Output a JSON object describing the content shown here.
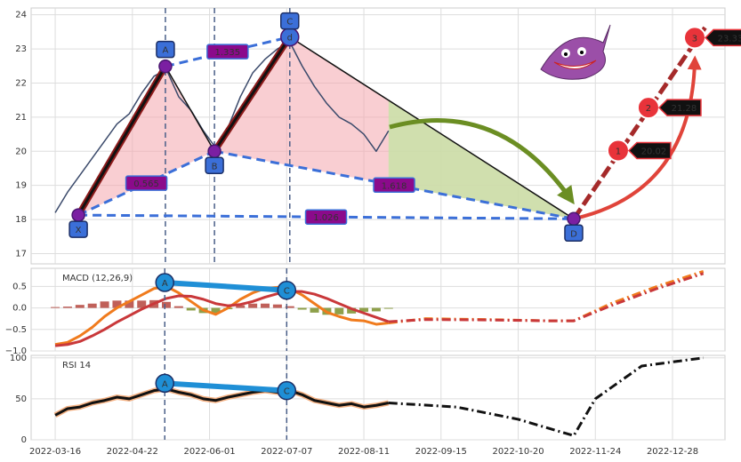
{
  "chart_data": [
    {
      "type": "line",
      "xlim": [
        -7.8,
        217
      ],
      "ylim": [
        16.7,
        24.2
      ],
      "yticks": [
        17,
        18,
        19,
        20,
        21,
        22,
        23,
        24
      ],
      "grid": true,
      "series": [
        {
          "color": "#3b4a6b",
          "x": [
            0,
            4,
            8,
            12,
            16,
            20,
            24,
            28,
            32,
            36,
            40,
            44,
            48,
            52,
            56,
            60,
            64,
            68,
            72,
            76,
            80,
            84,
            88,
            92,
            96,
            100,
            104,
            108
          ],
          "values": [
            18.2,
            18.8,
            19.3,
            19.8,
            20.3,
            20.8,
            21.1,
            21.7,
            22.2,
            22.4,
            21.6,
            21.2,
            20.6,
            20.1,
            20.7,
            21.6,
            22.3,
            22.7,
            23.0,
            23.2,
            22.5,
            21.9,
            21.4,
            21.0,
            20.8,
            20.5,
            20.0,
            20.6
          ]
        }
      ],
      "points": [
        {
          "label": "X",
          "x": 7.5,
          "y": 18.13
        },
        {
          "label": "A",
          "x": 35.7,
          "y": 22.49
        },
        {
          "label": "B",
          "x": 51.6,
          "y": 20.0
        },
        {
          "label": "C",
          "x": 76,
          "y": 23.35,
          "marker_text": "d"
        },
        {
          "label": "D",
          "x": 168,
          "y": 18.02
        }
      ],
      "ratios": [
        0.565,
        1.335,
        1.618,
        1.026
      ],
      "targets": [
        {
          "label": "1",
          "x": 182.4,
          "y": 20.02
        },
        {
          "label": "2",
          "x": 192.2,
          "y": 21.28
        },
        {
          "label": "3",
          "x": 207.2,
          "y": 23.33
        }
      ],
      "pattern_color": "#f4a6ad",
      "projection_color": "#c5e3a5"
    },
    {
      "type": "line",
      "title": "MACD (12,26,9)",
      "xlim": [
        -7.8,
        217
      ],
      "ylim": [
        -1.0,
        0.92
      ],
      "yticks": [
        {
          "value": -1,
          "label": "−1.0"
        },
        {
          "value": -0.5,
          "label": "−0.5"
        },
        {
          "value": 0,
          "label": "0.0"
        },
        0.5
      ],
      "grid": true,
      "series": [
        {
          "kind": "bar",
          "color": "#b5443c",
          "negative_color": "#7a8f2a",
          "x": [
            0,
            4,
            8,
            12,
            16,
            20,
            24,
            28,
            32,
            36,
            40,
            44,
            48,
            52,
            56,
            60,
            64,
            68,
            72,
            76,
            80,
            84,
            88,
            92,
            96,
            100,
            104,
            108
          ],
          "values": [
            0.02,
            0.03,
            0.07,
            0.1,
            0.15,
            0.17,
            0.17,
            0.17,
            0.18,
            0.14,
            0.04,
            -0.06,
            -0.12,
            -0.12,
            -0.03,
            0.06,
            0.1,
            0.1,
            0.08,
            0.04,
            -0.04,
            -0.11,
            -0.16,
            -0.15,
            -0.13,
            -0.09,
            -0.08,
            -0.02
          ]
        },
        {
          "color": "#f07b1d",
          "x": [
            0,
            4,
            8,
            12,
            16,
            20,
            24,
            28,
            32,
            36,
            40,
            44,
            48,
            52,
            56,
            60,
            64,
            68,
            72,
            76,
            80,
            84,
            88,
            92,
            96,
            100,
            104,
            108
          ],
          "values": [
            -0.85,
            -0.8,
            -0.65,
            -0.45,
            -0.2,
            0.0,
            0.15,
            0.3,
            0.45,
            0.5,
            0.35,
            0.15,
            -0.05,
            -0.15,
            0.0,
            0.2,
            0.35,
            0.45,
            0.48,
            0.45,
            0.3,
            0.1,
            -0.1,
            -0.2,
            -0.28,
            -0.3,
            -0.38,
            -0.35
          ]
        },
        {
          "color": "#c9383a",
          "x": [
            0,
            4,
            8,
            12,
            16,
            20,
            24,
            28,
            32,
            36,
            40,
            44,
            48,
            52,
            56,
            60,
            64,
            68,
            72,
            76,
            80,
            84,
            88,
            92,
            96,
            100,
            104,
            108
          ],
          "values": [
            -0.88,
            -0.85,
            -0.78,
            -0.65,
            -0.5,
            -0.33,
            -0.18,
            -0.03,
            0.1,
            0.22,
            0.28,
            0.27,
            0.2,
            0.1,
            0.05,
            0.08,
            0.15,
            0.25,
            0.33,
            0.38,
            0.38,
            0.32,
            0.22,
            0.1,
            -0.02,
            -0.12,
            -0.22,
            -0.32
          ]
        },
        {
          "color": "#f07b1d",
          "dash": true,
          "x": [
            108,
            120,
            140,
            160,
            168,
            180,
            195,
            210
          ],
          "values": [
            -0.35,
            -0.25,
            -0.27,
            -0.3,
            -0.3,
            0.1,
            0.5,
            0.85
          ]
        },
        {
          "color": "#c9383a",
          "dash": true,
          "x": [
            108,
            120,
            140,
            160,
            168,
            180,
            195,
            210
          ],
          "values": [
            -0.32,
            -0.27,
            -0.28,
            -0.3,
            -0.3,
            0.05,
            0.45,
            0.8
          ]
        }
      ],
      "points": [
        {
          "label": "A",
          "x": 35.5,
          "y": 0.59
        },
        {
          "label": "C",
          "x": 75,
          "y": 0.41
        }
      ]
    },
    {
      "type": "line",
      "title": "RSI 14",
      "xlim": [
        -7.8,
        217
      ],
      "ylim": [
        0,
        103
      ],
      "yticks": [
        0,
        50,
        100
      ],
      "grid": true,
      "xticks": [
        {
          "value": 0,
          "label": "2022-03-16"
        },
        {
          "value": 25,
          "label": "2022-04-22"
        },
        {
          "value": 50,
          "label": "2022-06-01"
        },
        {
          "value": 75,
          "label": "2022-07-07"
        },
        {
          "value": 100,
          "label": "2022-08-11"
        },
        {
          "value": 125,
          "label": "2022-09-15"
        },
        {
          "value": 150,
          "label": "2022-10-20"
        },
        {
          "value": 175,
          "label": "2022-11-24"
        },
        {
          "value": 200,
          "label": "2022-12-28"
        }
      ],
      "series": [
        {
          "color": "#111111",
          "x": [
            0,
            4,
            8,
            12,
            16,
            20,
            24,
            28,
            32,
            36,
            40,
            44,
            48,
            52,
            56,
            60,
            64,
            68,
            72,
            76,
            80,
            84,
            88,
            92,
            96,
            100,
            104,
            108
          ],
          "values": [
            30,
            38,
            40,
            45,
            48,
            52,
            50,
            55,
            60,
            62,
            58,
            55,
            50,
            48,
            52,
            55,
            58,
            60,
            58,
            60,
            55,
            48,
            45,
            42,
            44,
            40,
            42,
            45
          ]
        },
        {
          "color": "#111111",
          "dash": true,
          "x": [
            108,
            130,
            150,
            168,
            175,
            190,
            210
          ],
          "values": [
            45,
            40,
            25,
            5,
            50,
            90,
            100
          ]
        }
      ],
      "points": [
        {
          "label": "A",
          "x": 35.5,
          "y": 69
        },
        {
          "label": "C",
          "x": 75,
          "y": 60
        }
      ]
    }
  ]
}
